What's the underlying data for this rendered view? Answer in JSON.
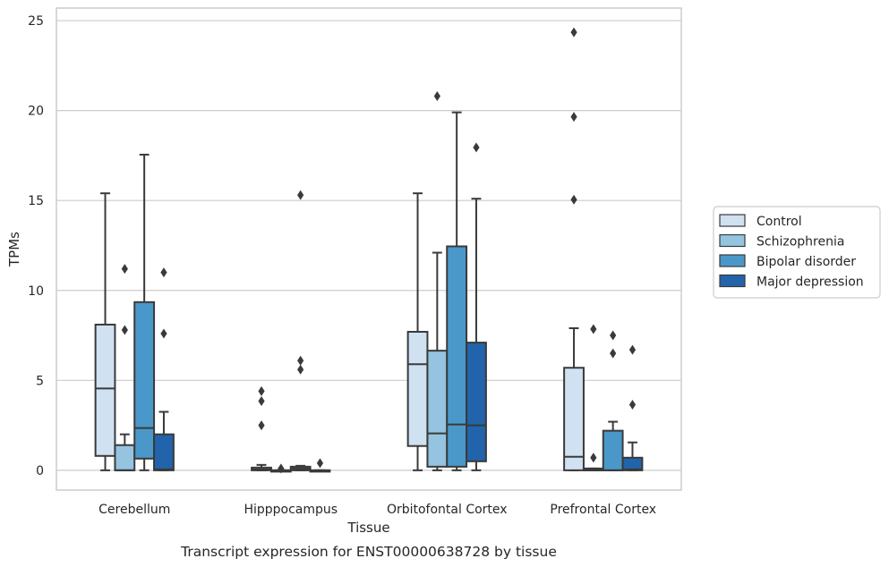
{
  "chart_data": {
    "type": "boxplot",
    "title": "",
    "caption": "Transcript expression for ENST00000638728 by tissue",
    "xlabel": "Tissue",
    "ylabel": "TPMs",
    "ylim": [
      -1.1,
      25.7
    ],
    "yticks": [
      0,
      5,
      10,
      15,
      20,
      25
    ],
    "grid": "horizontal",
    "legend_position": "right",
    "categories": [
      "Cerebellum",
      "Hipppocampus",
      "Orbitofontal Cortex",
      "Prefrontal Cortex"
    ],
    "series": [
      {
        "name": "Control",
        "color": "#d0e1f2",
        "boxes": [
          {
            "whislo": 0,
            "q1": 0.8,
            "med": 4.55,
            "q3": 8.1,
            "whishi": 15.4,
            "fliers": []
          },
          {
            "whislo": 0,
            "q1": 0,
            "med": 0.05,
            "q3": 0.15,
            "whishi": 0.3,
            "fliers": [
              2.5,
              3.85,
              4.4
            ]
          },
          {
            "whislo": 0,
            "q1": 1.35,
            "med": 5.9,
            "q3": 7.7,
            "whishi": 15.4,
            "fliers": []
          },
          {
            "whislo": 0,
            "q1": 0,
            "med": 0.75,
            "q3": 5.7,
            "whishi": 7.9,
            "fliers": [
              15.05,
              19.65,
              24.35
            ]
          }
        ]
      },
      {
        "name": "Schizophrenia",
        "color": "#94c4df",
        "boxes": [
          {
            "whislo": 0,
            "q1": 0,
            "med": 0,
            "q3": 1.4,
            "whishi": 2.0,
            "fliers": [
              7.8,
              11.2
            ]
          },
          {
            "whislo": 0,
            "q1": 0,
            "med": 0,
            "q3": 0,
            "whishi": 0,
            "fliers": [
              0.1
            ]
          },
          {
            "whislo": 0,
            "q1": 0.2,
            "med": 2.05,
            "q3": 6.65,
            "whishi": 12.1,
            "fliers": [
              20.8
            ]
          },
          {
            "whislo": 0,
            "q1": 0,
            "med": 0,
            "q3": 0.1,
            "whishi": 0.1,
            "fliers": [
              0.7,
              7.85
            ]
          }
        ]
      },
      {
        "name": "Bipolar disorder",
        "color": "#4a98c9",
        "boxes": [
          {
            "whislo": 0,
            "q1": 0.65,
            "med": 2.35,
            "q3": 9.35,
            "whishi": 17.55,
            "fliers": []
          },
          {
            "whislo": 0,
            "q1": 0,
            "med": 0.1,
            "q3": 0.2,
            "whishi": 0.25,
            "fliers": [
              5.6,
              6.1,
              15.3
            ]
          },
          {
            "whislo": 0,
            "q1": 0.2,
            "med": 2.55,
            "q3": 12.45,
            "whishi": 19.9,
            "fliers": []
          },
          {
            "whislo": 0,
            "q1": 0,
            "med": 0,
            "q3": 2.2,
            "whishi": 2.7,
            "fliers": [
              6.5,
              7.5
            ]
          }
        ]
      },
      {
        "name": "Major depression",
        "color": "#2164ab",
        "boxes": [
          {
            "whislo": 0,
            "q1": 0,
            "med": 0.05,
            "q3": 2.0,
            "whishi": 3.25,
            "fliers": [
              7.6,
              11.0
            ]
          },
          {
            "whislo": 0,
            "q1": 0,
            "med": 0,
            "q3": 0,
            "whishi": 0,
            "fliers": [
              0.4
            ]
          },
          {
            "whislo": 0,
            "q1": 0.5,
            "med": 2.5,
            "q3": 7.1,
            "whishi": 15.1,
            "fliers": [
              17.95
            ]
          },
          {
            "whislo": 0,
            "q1": 0,
            "med": 0.05,
            "q3": 0.7,
            "whishi": 1.55,
            "fliers": [
              3.65,
              6.7
            ]
          }
        ]
      }
    ]
  }
}
